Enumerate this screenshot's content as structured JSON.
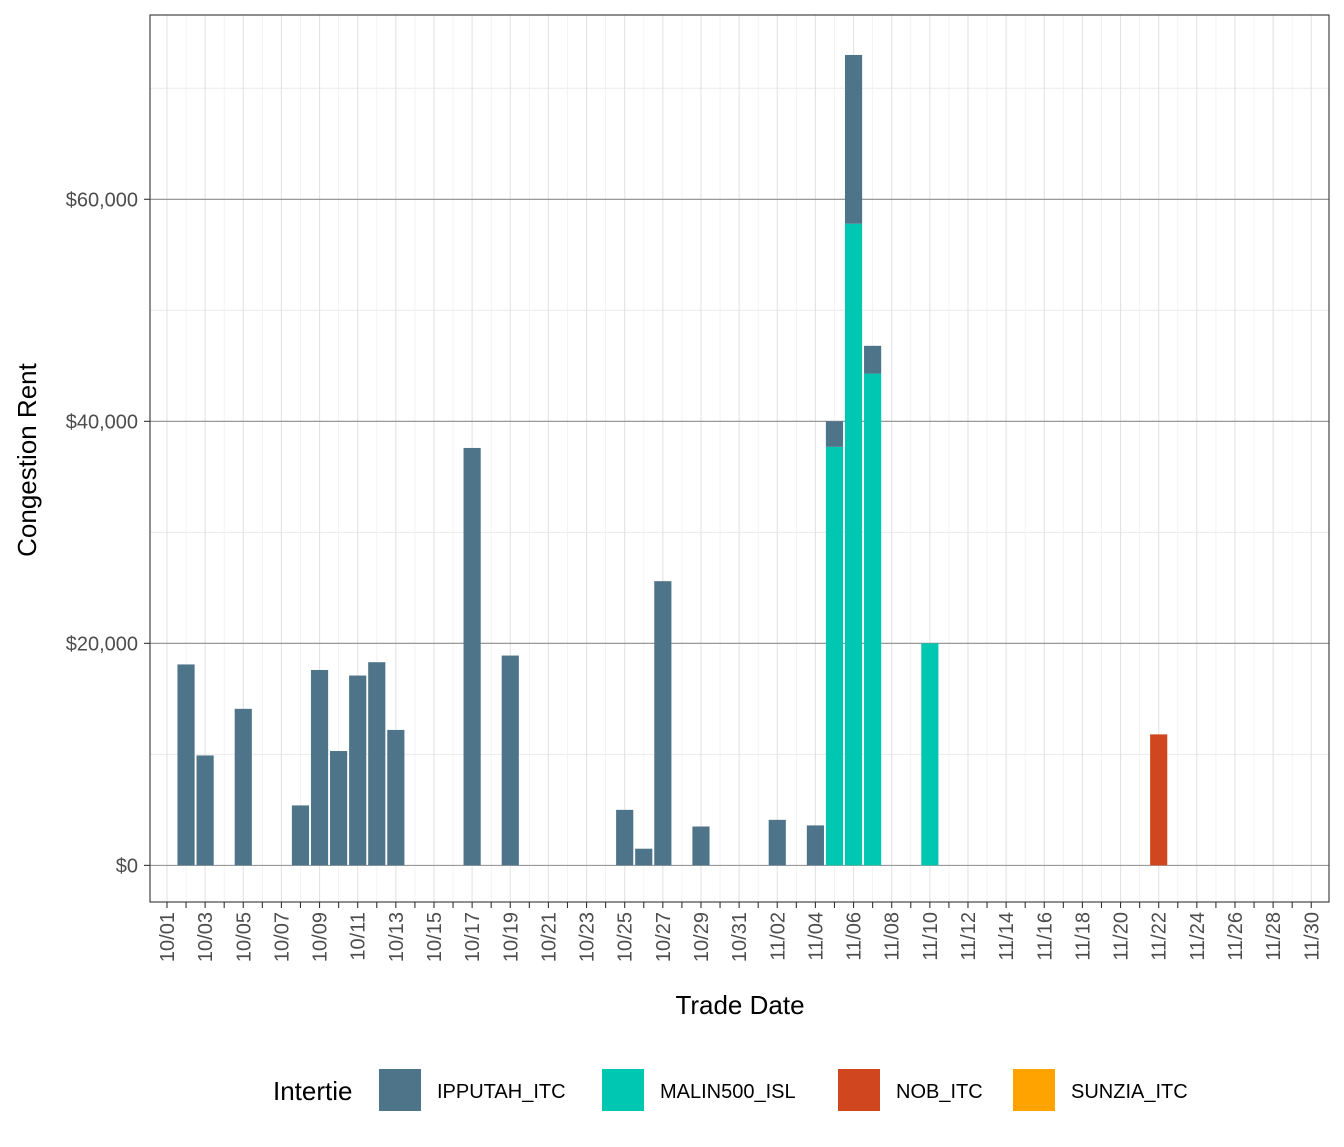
{
  "chart_data": {
    "type": "bar",
    "stacked": true,
    "xlabel": "Trade Date",
    "ylabel": "Congestion Rent",
    "ylim": [
      -3300,
      76600
    ],
    "y_ticks": [
      0,
      20000,
      40000,
      60000
    ],
    "y_tick_labels": [
      "$0",
      "$20,000",
      "$40,000",
      "$60,000"
    ],
    "x_tick_labels": [
      "10/01",
      "10/03",
      "10/05",
      "10/07",
      "10/09",
      "10/11",
      "10/13",
      "10/15",
      "10/17",
      "10/19",
      "10/21",
      "10/23",
      "10/25",
      "10/27",
      "10/29",
      "10/31",
      "11/02",
      "11/04",
      "11/06",
      "11/08",
      "11/10",
      "11/12",
      "11/14",
      "11/16",
      "11/18",
      "11/20",
      "11/22",
      "11/24",
      "11/26",
      "11/28",
      "11/30"
    ],
    "grid": true,
    "legend": {
      "title": "Intertie",
      "position": "bottom"
    },
    "series": [
      {
        "name": "IPPUTAH_ITC",
        "color": "#4E7489",
        "points": [
          [
            "10/02",
            18100
          ],
          [
            "10/03",
            9900
          ],
          [
            "10/05",
            14100
          ],
          [
            "10/08",
            5400
          ],
          [
            "10/09",
            17600
          ],
          [
            "10/10",
            10300
          ],
          [
            "10/11",
            17100
          ],
          [
            "10/12",
            18300
          ],
          [
            "10/13",
            12200
          ],
          [
            "10/17",
            37600
          ],
          [
            "10/19",
            18900
          ],
          [
            "10/25",
            5000
          ],
          [
            "10/26",
            1500
          ],
          [
            "10/27",
            25600
          ],
          [
            "10/29",
            3500
          ],
          [
            "11/02",
            4100
          ],
          [
            "11/04",
            3600
          ],
          [
            "11/05",
            2300
          ],
          [
            "11/06",
            15200
          ],
          [
            "11/07",
            2500
          ]
        ]
      },
      {
        "name": "MALIN500_ISL",
        "color": "#00C7B1",
        "points": [
          [
            "11/05",
            37700
          ],
          [
            "11/06",
            57800
          ],
          [
            "11/07",
            44300
          ],
          [
            "11/10",
            20000
          ]
        ]
      },
      {
        "name": "NOB_ITC",
        "color": "#D0461E",
        "points": [
          [
            "11/22",
            11800
          ]
        ]
      },
      {
        "name": "SUNZIA_ITC",
        "color": "#FFA300",
        "points": []
      }
    ]
  }
}
